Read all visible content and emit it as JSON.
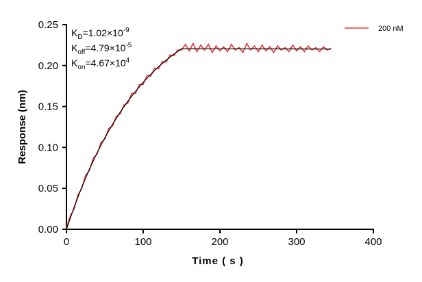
{
  "chart_data": {
    "type": "line",
    "xlabel": "Time ( s )",
    "ylabel": "Response (nm)",
    "xlim": [
      0,
      400
    ],
    "ylim": [
      0,
      0.25
    ],
    "xticks": [
      "0",
      "100",
      "200",
      "300",
      "400"
    ],
    "yticks": [
      "0.00",
      "0.05",
      "0.10",
      "0.15",
      "0.20",
      "0.25"
    ],
    "grid": false,
    "legend_position": "top-right",
    "annotations": [
      {
        "base": "K",
        "sub": "D",
        "text": "=1.02×10",
        "sup": "-9"
      },
      {
        "base": "K",
        "sub": "off",
        "text": "=4.79×10",
        "sup": "-5"
      },
      {
        "base": "K",
        "sub": "on",
        "text": "=4.67×10",
        "sup": "4"
      }
    ],
    "series": [
      {
        "name": "200 nM",
        "color": "#e8363a",
        "x": [
          0,
          5,
          10,
          15,
          20,
          25,
          30,
          35,
          40,
          45,
          50,
          55,
          60,
          65,
          70,
          75,
          80,
          85,
          90,
          95,
          100,
          105,
          110,
          115,
          120,
          125,
          130,
          135,
          140,
          145,
          150,
          155,
          160,
          165,
          170,
          175,
          180,
          185,
          190,
          195,
          200,
          205,
          210,
          215,
          220,
          225,
          230,
          235,
          240,
          245,
          250,
          255,
          260,
          265,
          270,
          275,
          280,
          285,
          290,
          295,
          300,
          305,
          310,
          315,
          320,
          325,
          330,
          335,
          340,
          345
        ],
        "y": [
          0.002,
          0.016,
          0.025,
          0.042,
          0.05,
          0.066,
          0.072,
          0.087,
          0.092,
          0.106,
          0.11,
          0.123,
          0.126,
          0.138,
          0.141,
          0.152,
          0.154,
          0.166,
          0.166,
          0.177,
          0.177,
          0.188,
          0.187,
          0.197,
          0.196,
          0.205,
          0.204,
          0.213,
          0.212,
          0.219,
          0.219,
          0.226,
          0.218,
          0.227,
          0.217,
          0.225,
          0.219,
          0.226,
          0.216,
          0.224,
          0.218,
          0.223,
          0.217,
          0.226,
          0.219,
          0.222,
          0.216,
          0.227,
          0.219,
          0.224,
          0.217,
          0.225,
          0.218,
          0.223,
          0.216,
          0.224,
          0.219,
          0.222,
          0.217,
          0.225,
          0.218,
          0.223,
          0.217,
          0.224,
          0.219,
          0.222,
          0.217,
          0.223,
          0.219,
          0.221
        ]
      },
      {
        "color": "#000000",
        "x": [
          0,
          10,
          20,
          30,
          40,
          50,
          60,
          70,
          80,
          90,
          100,
          110,
          120,
          130,
          140,
          150,
          200,
          250,
          300,
          345
        ],
        "y": [
          0,
          0.027,
          0.0515,
          0.0736,
          0.0936,
          0.1118,
          0.1281,
          0.143,
          0.1564,
          0.1685,
          0.1795,
          0.1895,
          0.1985,
          0.2066,
          0.214,
          0.2206,
          0.2205,
          0.2204,
          0.2203,
          0.2202
        ]
      }
    ]
  }
}
